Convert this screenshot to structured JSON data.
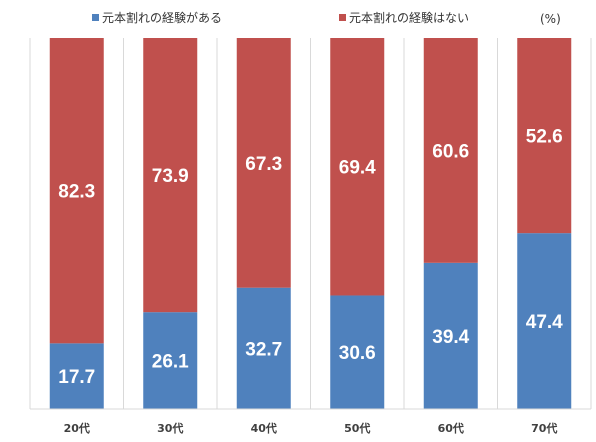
{
  "chart_data": {
    "type": "bar",
    "stacked": true,
    "percent_stacked": true,
    "unit_label": "(%)",
    "legend_position": "top",
    "grid": "vertical category separators",
    "categories": [
      "20代",
      "30代",
      "40代",
      "50代",
      "60代",
      "70代"
    ],
    "series": [
      {
        "name": "元本割れの経験がある",
        "color": "#4F81BD",
        "values": [
          17.7,
          26.1,
          32.7,
          30.6,
          39.4,
          47.4
        ]
      },
      {
        "name": "元本割れの経験はない",
        "color": "#C0504D",
        "values": [
          82.3,
          73.9,
          67.3,
          69.4,
          60.6,
          52.6
        ]
      }
    ],
    "ylim": [
      0,
      100
    ]
  }
}
